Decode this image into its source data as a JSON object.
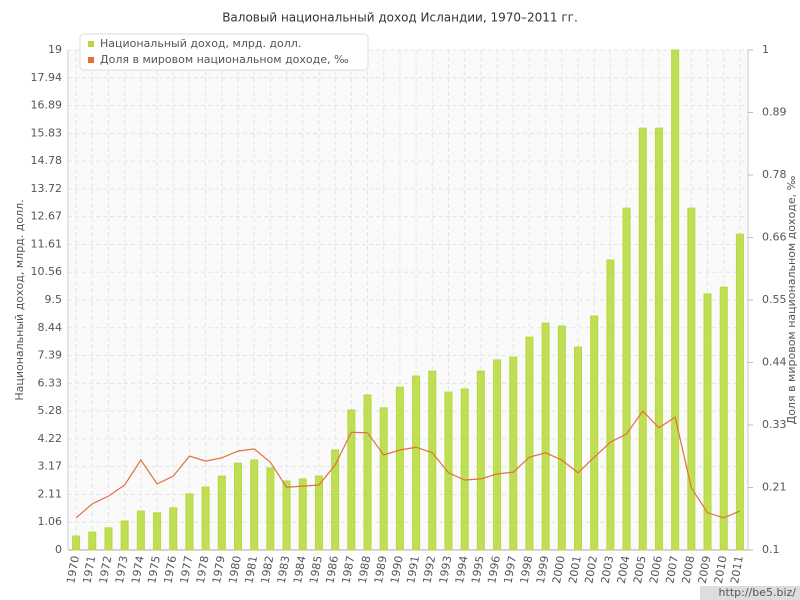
{
  "chart_data": {
    "type": "bar",
    "title": "Валовый национальный доход Исландии, 1970–2011 гг.",
    "ylabel": "Национальный доход, млрд. долл.",
    "y2label": "Доля в мировом национальном доходе, ‰",
    "watermark": "http://be5.biz/",
    "legend": "top-left",
    "grid": true,
    "categories": [
      "1970",
      "1971",
      "1972",
      "1973",
      "1974",
      "1975",
      "1976",
      "1977",
      "1978",
      "1979",
      "1980",
      "1981",
      "1982",
      "1983",
      "1984",
      "1985",
      "1986",
      "1987",
      "1988",
      "1989",
      "1990",
      "1991",
      "1992",
      "1993",
      "1994",
      "1995",
      "1996",
      "1997",
      "1998",
      "1999",
      "2000",
      "2001",
      "2002",
      "2003",
      "2004",
      "2005",
      "2006",
      "2007",
      "2008",
      "2009",
      "2010",
      "2011"
    ],
    "series": [
      {
        "name": "Национальный доход, млрд. долл.",
        "type": "bar",
        "color": "#b5d93a",
        "values": [
          0.53,
          0.68,
          0.84,
          1.1,
          1.48,
          1.41,
          1.6,
          2.13,
          2.39,
          2.81,
          3.3,
          3.42,
          3.12,
          2.62,
          2.7,
          2.81,
          3.8,
          5.32,
          5.89,
          5.4,
          6.19,
          6.61,
          6.8,
          6.0,
          6.12,
          6.8,
          7.22,
          7.33,
          8.09,
          8.62,
          8.51,
          7.71,
          8.89,
          11.02,
          12.99,
          16.03,
          16.03,
          19,
          12.99,
          9.73,
          9.99,
          12.0
        ]
      },
      {
        "name": "Доля в мировом национальном доходе, ‰",
        "type": "line",
        "axis": "y2",
        "color": "#e07040",
        "values": [
          0.158,
          0.183,
          0.197,
          0.217,
          0.262,
          0.219,
          0.233,
          0.269,
          0.26,
          0.266,
          0.278,
          0.282,
          0.258,
          0.213,
          0.215,
          0.217,
          0.253,
          0.312,
          0.311,
          0.271,
          0.28,
          0.285,
          0.275,
          0.239,
          0.226,
          0.228,
          0.237,
          0.24,
          0.267,
          0.275,
          0.262,
          0.239,
          0.267,
          0.294,
          0.309,
          0.35,
          0.32,
          0.339,
          0.212,
          0.167,
          0.158,
          0.17
        ]
      }
    ],
    "ylim": [
      0,
      19
    ],
    "yticks": [
      0,
      {
        "value": 1.0556,
        "label": "1.06"
      },
      {
        "value": 2.1111,
        "label": "2.11"
      },
      {
        "value": 3.1667,
        "label": "3.17"
      },
      {
        "value": 4.2222,
        "label": "4.22"
      },
      {
        "value": 5.2778,
        "label": "5.28"
      },
      {
        "value": 6.3333,
        "label": "6.33"
      },
      {
        "value": 7.3889,
        "label": "7.39"
      },
      {
        "value": 8.4444,
        "label": "8.44"
      },
      9.5,
      {
        "value": 10.5556,
        "label": "10.56"
      },
      {
        "value": 11.6111,
        "label": "11.61"
      },
      {
        "value": 12.6667,
        "label": "12.67"
      },
      {
        "value": 13.7222,
        "label": "13.72"
      },
      {
        "value": 14.7778,
        "label": "14.78"
      },
      {
        "value": 15.8333,
        "label": "15.83"
      },
      {
        "value": 16.8889,
        "label": "16.89"
      },
      {
        "value": 17.9444,
        "label": "17.94"
      },
      19
    ],
    "y2lim": [
      0.1,
      1
    ],
    "y2ticks": [
      0.1,
      {
        "value": 0.2125,
        "label": "0.21"
      },
      {
        "value": 0.325,
        "label": "0.33"
      },
      {
        "value": 0.4375,
        "label": "0.44"
      },
      0.55,
      {
        "value": 0.6625,
        "label": "0.66"
      },
      {
        "value": 0.775,
        "label": "0.78"
      },
      {
        "value": 0.8875,
        "label": "0.89"
      },
      1
    ]
  }
}
